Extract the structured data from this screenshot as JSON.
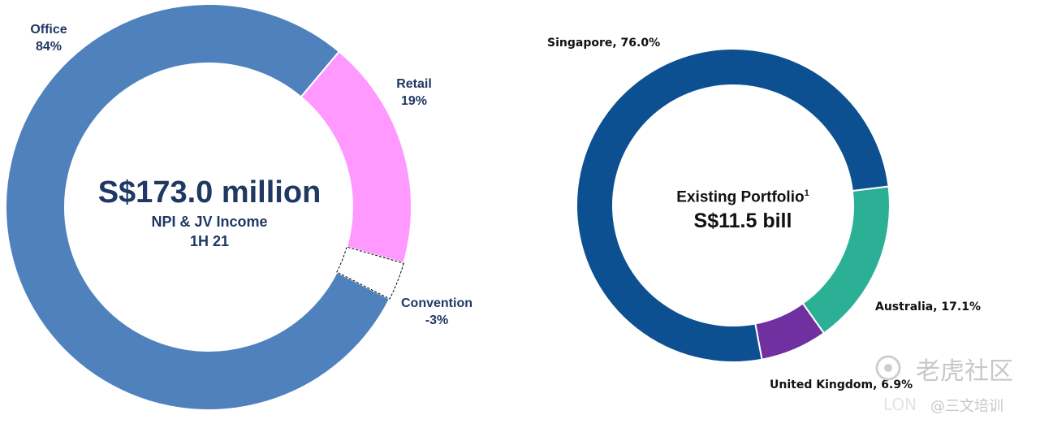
{
  "chart_data": [
    {
      "type": "donut",
      "center_title": "S$173.0 million",
      "center_subtitle_1": "NPI & JV Income",
      "center_subtitle_2": "1H 21",
      "slices": [
        {
          "name": "Office",
          "value_label": "84%",
          "value": 84,
          "color": "#4f81bd"
        },
        {
          "name": "Retail",
          "value_label": "19%",
          "value": 19,
          "color": "#ff99ff"
        },
        {
          "name": "Convention",
          "value_label": "-3%",
          "value": -3,
          "color": "#ffffff"
        }
      ]
    },
    {
      "type": "donut",
      "center_title": "Existing Portfolio",
      "center_title_superscript": "1",
      "center_value": "S$11.5 bill",
      "slices": [
        {
          "name": "Singapore",
          "label": "Singapore, 76.0%",
          "value": 76.0,
          "color": "#0d5092"
        },
        {
          "name": "Australia",
          "label": "Australia, 17.1%",
          "value": 17.1,
          "color": "#2bb095"
        },
        {
          "name": "United Kingdom",
          "label": "United Kingdom, 6.9%",
          "value": 6.9,
          "color": "#7030a0"
        }
      ]
    }
  ],
  "watermark": {
    "brand": "老虎社区",
    "handle": "@三文培训",
    "faint": "LON"
  }
}
